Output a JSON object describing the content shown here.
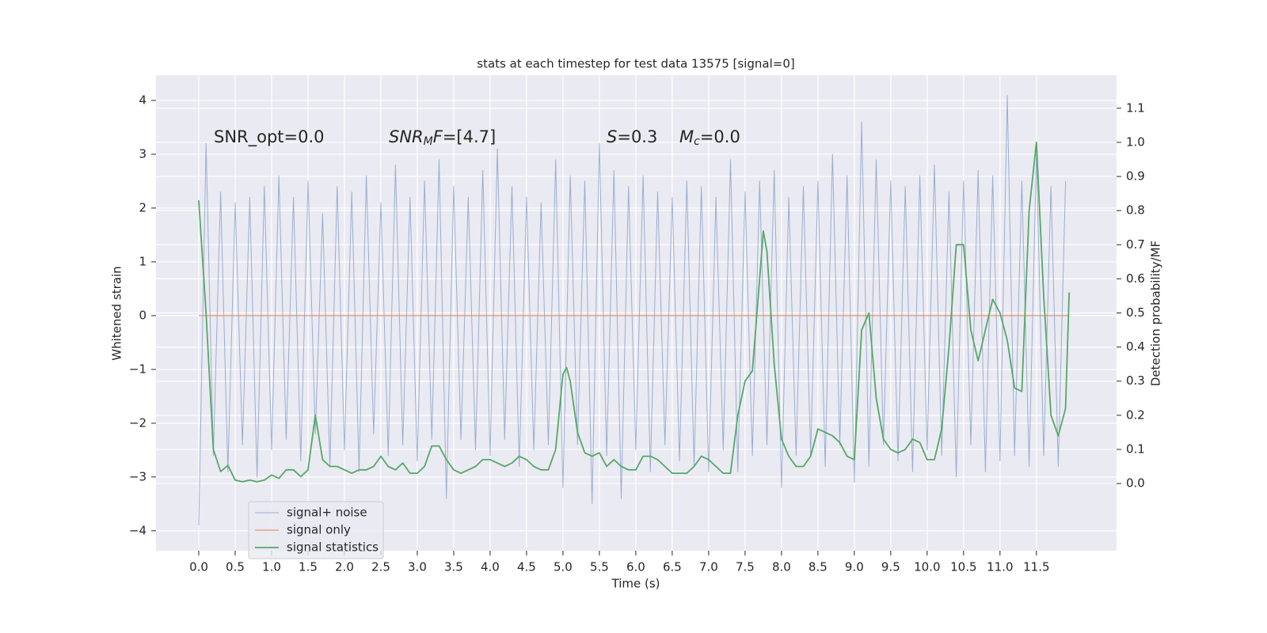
{
  "chart_data": {
    "type": "line",
    "title": "stats at each timestep for test data 13575 [signal=0]",
    "xlabel": "Time (s)",
    "ylabel": "Whitened strain",
    "y2label": "Detection probability/MF",
    "annotations": [
      {
        "parts": [
          {
            "text": "SNR_opt=0.0"
          }
        ]
      },
      {
        "parts": [
          {
            "text": "SNR",
            "italic": true
          },
          {
            "text": "M",
            "italic": true,
            "sub": true
          },
          {
            "text": "F",
            "italic": true
          },
          {
            "text": "=[4.7]"
          }
        ]
      },
      {
        "parts": [
          {
            "text": "S",
            "italic": true
          },
          {
            "text": "=0.3"
          }
        ]
      },
      {
        "parts": [
          {
            "text": "M",
            "italic": true
          },
          {
            "text": "c",
            "italic": true,
            "sub": true
          },
          {
            "text": "=0.0"
          }
        ]
      }
    ],
    "xlim": [
      -0.587,
      12.6
    ],
    "ylim": [
      -4.37,
      4.47
    ],
    "y2lim": [
      -0.197,
      1.197
    ],
    "xticks": [
      {
        "value": 0,
        "label": "0.0"
      },
      {
        "value": 0.5,
        "label": "0.5"
      },
      {
        "value": 1,
        "label": "1.0"
      },
      {
        "value": 1.5,
        "label": "1.5"
      },
      {
        "value": 2,
        "label": "2.0"
      },
      {
        "value": 2.5,
        "label": "2.5"
      },
      {
        "value": 3,
        "label": "3.0"
      },
      {
        "value": 3.5,
        "label": "3.5"
      },
      {
        "value": 4,
        "label": "4.0"
      },
      {
        "value": 4.5,
        "label": "4.5"
      },
      {
        "value": 5,
        "label": "5.0"
      },
      {
        "value": 5.5,
        "label": "5.5"
      },
      {
        "value": 6,
        "label": "6.0"
      },
      {
        "value": 6.5,
        "label": "6.5"
      },
      {
        "value": 7,
        "label": "7.0"
      },
      {
        "value": 7.5,
        "label": "7.5"
      },
      {
        "value": 8,
        "label": "8.0"
      },
      {
        "value": 8.5,
        "label": "8.5"
      },
      {
        "value": 9,
        "label": "9.0"
      },
      {
        "value": 9.5,
        "label": "9.5"
      },
      {
        "value": 10,
        "label": "10.0"
      },
      {
        "value": 10.5,
        "label": "10.5"
      },
      {
        "value": 11,
        "label": "11.0"
      },
      {
        "value": 11.5,
        "label": "11.5"
      }
    ],
    "yticks": [
      {
        "value": -4,
        "label": "−4"
      },
      {
        "value": -3,
        "label": "−3"
      },
      {
        "value": -2,
        "label": "−2"
      },
      {
        "value": -1,
        "label": "−1"
      },
      0,
      1,
      2,
      3,
      4
    ],
    "y2ticks": [
      {
        "value": 0,
        "label": "0.0"
      },
      {
        "value": 0.1,
        "label": "0.1"
      },
      {
        "value": 0.2,
        "label": "0.2"
      },
      {
        "value": 0.3,
        "label": "0.3"
      },
      {
        "value": 0.4,
        "label": "0.4"
      },
      {
        "value": 0.5,
        "label": "0.5"
      },
      {
        "value": 0.6,
        "label": "0.6"
      },
      {
        "value": 0.7,
        "label": "0.7"
      },
      {
        "value": 0.8,
        "label": "0.8"
      },
      {
        "value": 0.9,
        "label": "0.9"
      },
      {
        "value": 1,
        "label": "1.0"
      },
      {
        "value": 1.1,
        "label": "1.1"
      }
    ],
    "grid": true,
    "legend": "lower left",
    "series": [
      {
        "name": "signal+ noise",
        "color": "#4c72b0",
        "x": [
          0,
          0.1,
          0.2,
          0.3,
          0.4,
          0.5,
          0.6,
          0.7,
          0.8,
          0.9,
          1,
          1.1,
          1.2,
          1.3,
          1.4,
          1.5,
          1.6,
          1.7,
          1.8,
          1.9,
          2,
          2.1,
          2.2,
          2.3,
          2.4,
          2.5,
          2.6,
          2.7,
          2.8,
          2.9,
          3,
          3.1,
          3.2,
          3.3,
          3.4,
          3.5,
          3.6,
          3.7,
          3.8,
          3.9,
          4,
          4.1,
          4.2,
          4.3,
          4.4,
          4.5,
          4.6,
          4.7,
          4.8,
          4.9,
          5,
          5.1,
          5.2,
          5.3,
          5.4,
          5.5,
          5.6,
          5.7,
          5.8,
          5.9,
          6,
          6.1,
          6.2,
          6.3,
          6.4,
          6.5,
          6.6,
          6.7,
          6.8,
          6.9,
          7,
          7.1,
          7.2,
          7.3,
          7.4,
          7.5,
          7.6,
          7.7,
          7.8,
          7.9,
          8,
          8.1,
          8.2,
          8.3,
          8.4,
          8.5,
          8.6,
          8.7,
          8.8,
          8.9,
          9,
          9.1,
          9.2,
          9.3,
          9.4,
          9.5,
          9.6,
          9.7,
          9.8,
          9.9,
          10,
          10.1,
          10.2,
          10.3,
          10.4,
          10.5,
          10.6,
          10.7,
          10.8,
          10.9,
          11,
          11.1,
          11.2,
          11.3,
          11.4,
          11.5,
          11.6,
          11.7,
          11.8,
          11.9
        ],
        "values": [
          -3.9,
          3.2,
          -2.6,
          2.3,
          -2.9,
          2.1,
          -2.4,
          2.2,
          -3.0,
          2.4,
          -2.5,
          2.6,
          -2.3,
          2.2,
          -2.7,
          2.5,
          -2.2,
          1.9,
          -2.8,
          2.4,
          -2.5,
          2.3,
          -2.9,
          2.6,
          -2.2,
          2.1,
          -2.6,
          2.8,
          -2.4,
          2.2,
          -2.7,
          2.5,
          -2.3,
          2.9,
          -3.4,
          2.4,
          -2.3,
          2.2,
          -2.5,
          2.7,
          -2.6,
          3.1,
          -2.3,
          2.4,
          -2.8,
          2.2,
          -2.5,
          2.1,
          -2.4,
          2.9,
          -3.2,
          2.6,
          -2.4,
          2.5,
          -3.5,
          3.2,
          -2.6,
          2.7,
          -3.4,
          2.4,
          -2.5,
          2.6,
          -2.9,
          2.3,
          -2.4,
          2.2,
          -2.7,
          2.5,
          -2.8,
          2.4,
          -2.9,
          2.2,
          -2.5,
          2.9,
          -2.9,
          2.3,
          -2.6,
          2.5,
          -2.4,
          2.7,
          -3.2,
          2.2,
          -2.6,
          2.4,
          -2.6,
          2.5,
          -2.8,
          3.0,
          -2.4,
          2.6,
          -3.1,
          3.6,
          -2.8,
          2.9,
          -2.4,
          2.5,
          -2.7,
          2.4,
          -2.9,
          2.6,
          -2.5,
          2.8,
          -2.6,
          2.3,
          -3.0,
          2.5,
          -2.4,
          2.7,
          -2.9,
          2.6,
          -2.7,
          4.1,
          -2.6,
          2.5,
          -2.8,
          3.0,
          -2.6,
          2.4,
          -2.8,
          2.5
        ]
      },
      {
        "name": "signal only",
        "color": "#dd8452",
        "x": [
          0,
          11.95
        ],
        "values": [
          0,
          0
        ]
      },
      {
        "name": "signal statistics",
        "color": "#55a868",
        "axis": "y2",
        "x": [
          0,
          0.1,
          0.2,
          0.3,
          0.4,
          0.5,
          0.6,
          0.7,
          0.8,
          0.9,
          1,
          1.1,
          1.2,
          1.3,
          1.4,
          1.5,
          1.6,
          1.7,
          1.8,
          1.9,
          2,
          2.1,
          2.2,
          2.3,
          2.4,
          2.5,
          2.6,
          2.7,
          2.8,
          2.9,
          3,
          3.1,
          3.2,
          3.3,
          3.4,
          3.5,
          3.6,
          3.7,
          3.8,
          3.9,
          4,
          4.1,
          4.2,
          4.3,
          4.4,
          4.5,
          4.6,
          4.7,
          4.8,
          4.9,
          5,
          5.05,
          5.1,
          5.2,
          5.3,
          5.4,
          5.5,
          5.6,
          5.7,
          5.8,
          5.9,
          6,
          6.1,
          6.2,
          6.3,
          6.4,
          6.5,
          6.6,
          6.7,
          6.8,
          6.9,
          7,
          7.1,
          7.2,
          7.3,
          7.4,
          7.5,
          7.6,
          7.7,
          7.75,
          7.8,
          7.9,
          8,
          8.1,
          8.2,
          8.3,
          8.4,
          8.5,
          8.6,
          8.7,
          8.8,
          8.9,
          9,
          9.1,
          9.2,
          9.3,
          9.4,
          9.5,
          9.6,
          9.7,
          9.8,
          9.9,
          10,
          10.1,
          10.2,
          10.3,
          10.4,
          10.5,
          10.6,
          10.7,
          10.8,
          10.9,
          11,
          11.1,
          11.2,
          11.3,
          11.4,
          11.5,
          11.6,
          11.7,
          11.8,
          11.9,
          11.95
        ],
        "values": [
          0.83,
          0.5,
          0.1,
          0.035,
          0.053,
          0.01,
          0.005,
          0.01,
          0.005,
          0.01,
          0.025,
          0.015,
          0.04,
          0.04,
          0.02,
          0.04,
          0.2,
          0.07,
          0.05,
          0.05,
          0.04,
          0.03,
          0.04,
          0.04,
          0.05,
          0.08,
          0.05,
          0.04,
          0.06,
          0.03,
          0.03,
          0.05,
          0.11,
          0.11,
          0.07,
          0.04,
          0.03,
          0.04,
          0.05,
          0.07,
          0.07,
          0.06,
          0.05,
          0.06,
          0.08,
          0.07,
          0.05,
          0.04,
          0.04,
          0.1,
          0.32,
          0.34,
          0.3,
          0.15,
          0.09,
          0.08,
          0.09,
          0.05,
          0.07,
          0.05,
          0.04,
          0.04,
          0.08,
          0.08,
          0.07,
          0.05,
          0.03,
          0.03,
          0.03,
          0.05,
          0.08,
          0.07,
          0.05,
          0.03,
          0.03,
          0.2,
          0.3,
          0.33,
          0.6,
          0.74,
          0.68,
          0.35,
          0.13,
          0.08,
          0.05,
          0.05,
          0.08,
          0.16,
          0.15,
          0.14,
          0.12,
          0.08,
          0.07,
          0.45,
          0.5,
          0.25,
          0.13,
          0.1,
          0.09,
          0.1,
          0.13,
          0.12,
          0.07,
          0.07,
          0.16,
          0.4,
          0.7,
          0.7,
          0.45,
          0.36,
          0.45,
          0.54,
          0.5,
          0.42,
          0.28,
          0.27,
          0.8,
          1.0,
          0.55,
          0.2,
          0.14,
          0.22,
          0.56
        ]
      }
    ]
  }
}
